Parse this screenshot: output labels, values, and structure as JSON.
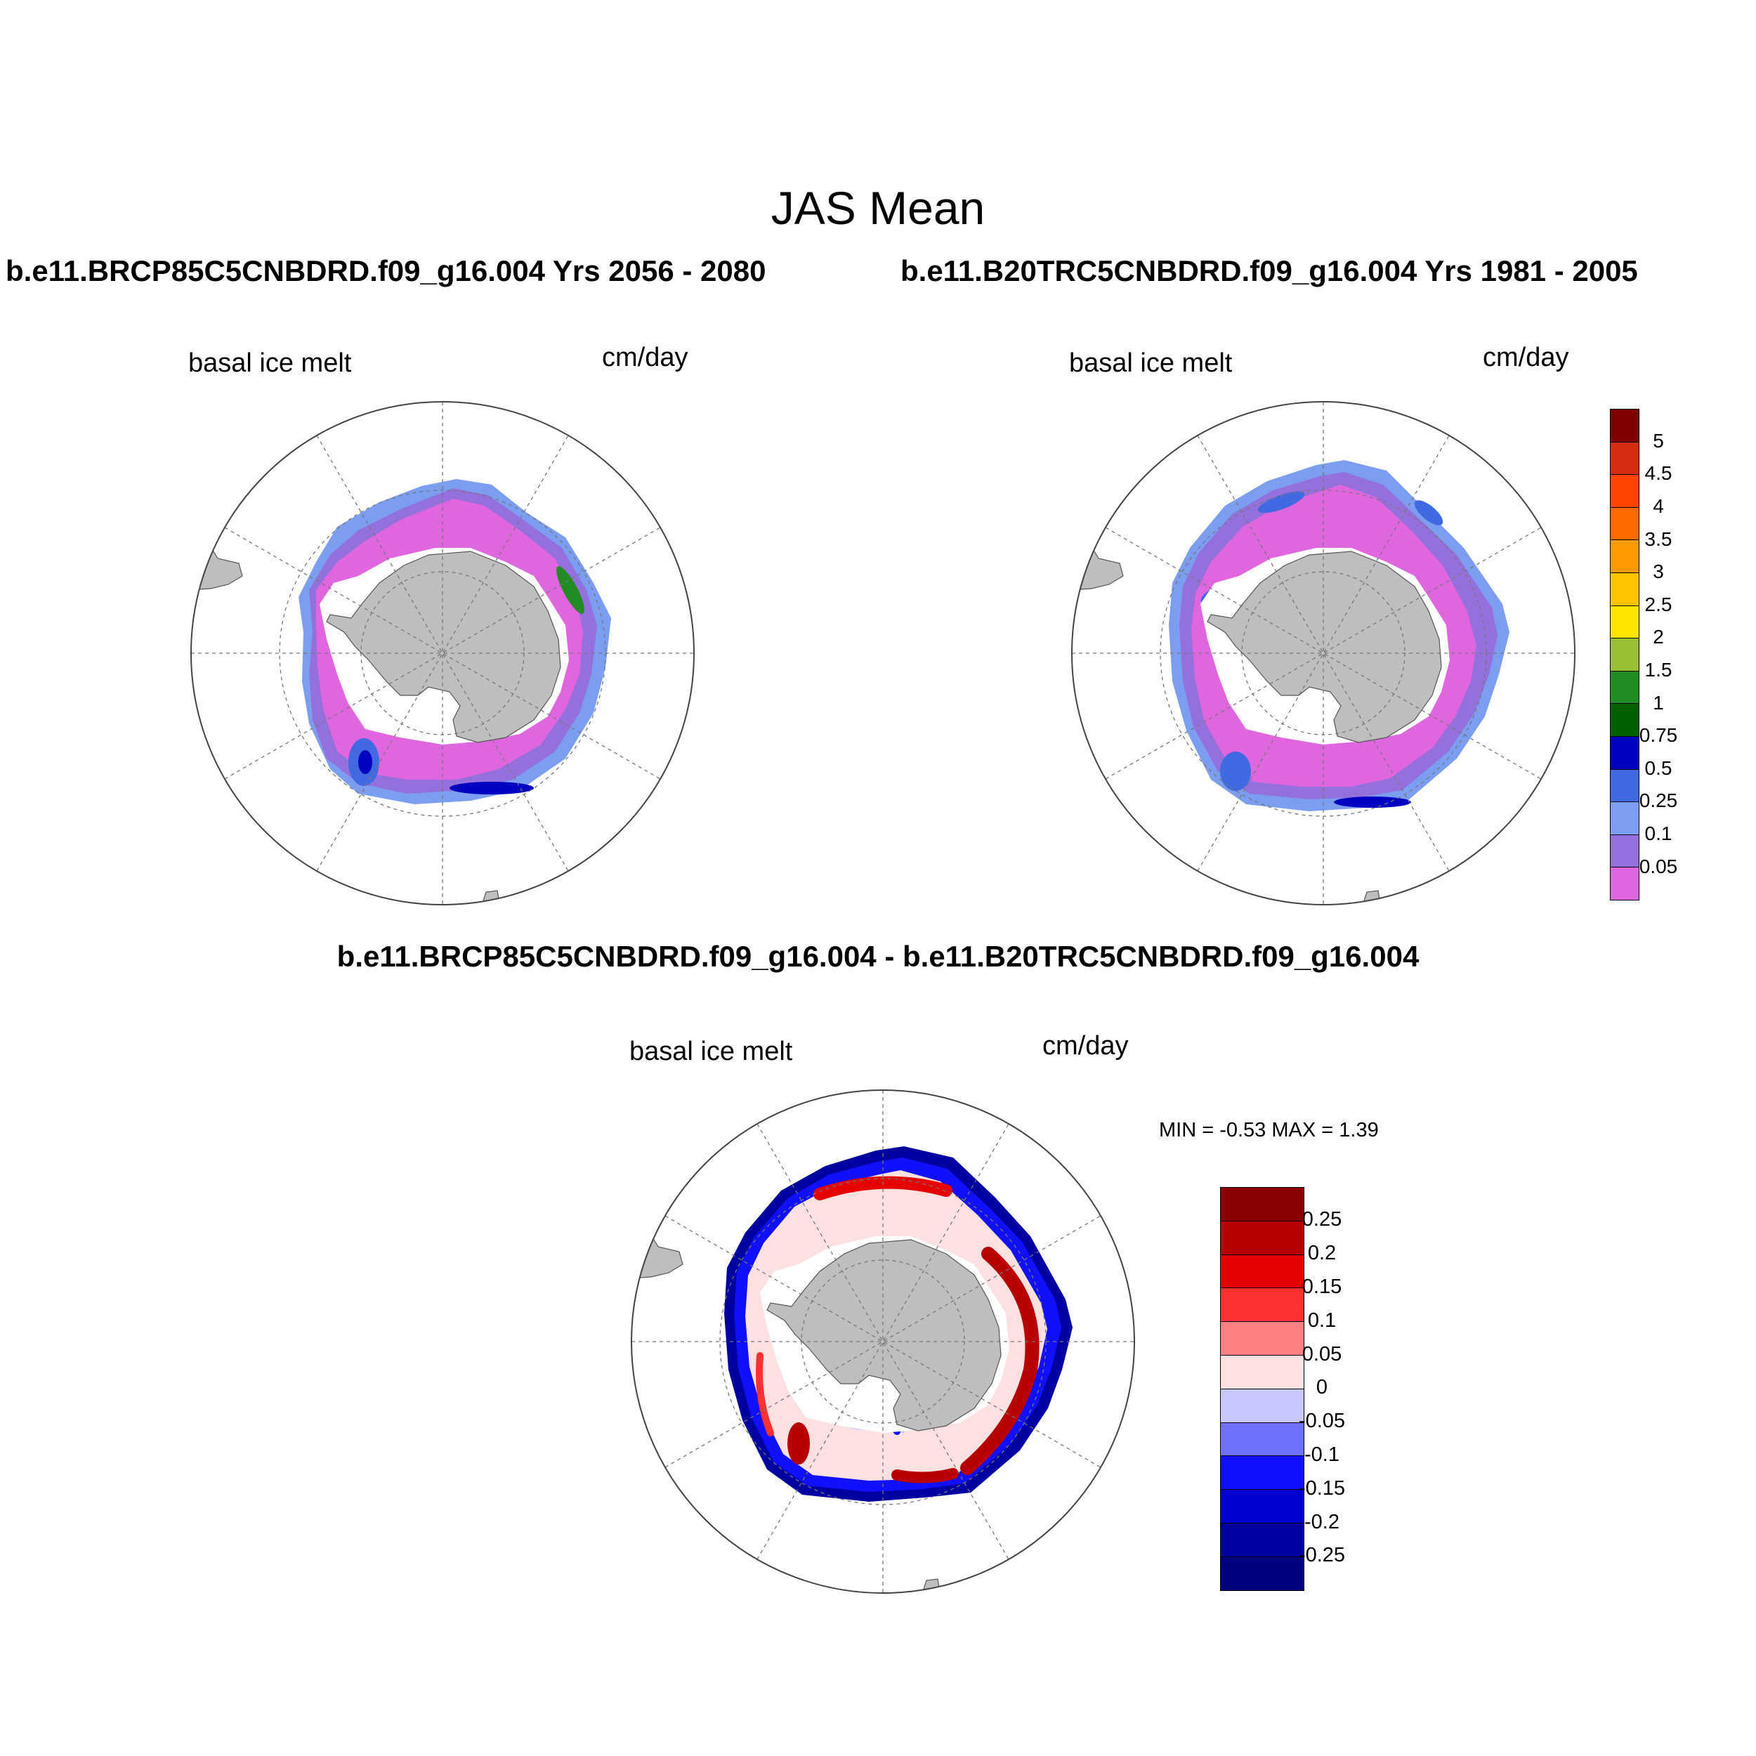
{
  "title": "JAS Mean",
  "panels": [
    {
      "run_title": "b.e11.BRCP85C5CNBDRD.f09_g16.004  Yrs 2056 - 2080",
      "variable_label": "basal ice melt",
      "units_label": "cm/day"
    },
    {
      "run_title": "b.e11.B20TRC5CNBDRD.f09_g16.004  Yrs 1981 - 2005",
      "variable_label": "basal ice melt",
      "units_label": "cm/day"
    },
    {
      "run_title": "b.e11.BRCP85C5CNBDRD.f09_g16.004 - b.e11.B20TRC5CNBDRD.f09_g16.004",
      "variable_label": "basal ice melt",
      "units_label": "cm/day",
      "min_max_label": "MIN =  -0.53 MAX =   1.39"
    }
  ],
  "colorbar_abs": {
    "labels": [
      "5",
      "4.5",
      "4",
      "3.5",
      "3",
      "2.5",
      "2",
      "1.5",
      "1",
      "0.75",
      "0.5",
      "0.25",
      "0.1",
      "0.05"
    ],
    "colors": [
      "#800000",
      "#d62c10",
      "#ff4400",
      "#ff6a00",
      "#ff9a00",
      "#ffc400",
      "#ffe600",
      "#99bf33",
      "#228b22",
      "#006000",
      "#0000c0",
      "#4169e1",
      "#7b9ef0",
      "#9370db",
      "#e066e0"
    ]
  },
  "colorbar_diff": {
    "labels": [
      "0.25",
      "0.2",
      "0.15",
      "0.1",
      "0.05",
      "0",
      "-0.05",
      "-0.1",
      "-0.15",
      "-0.2",
      "-0.25"
    ],
    "colors": [
      "#8b0000",
      "#b80000",
      "#e60000",
      "#ff3030",
      "#ff8080",
      "#fde0e0",
      "#c8c8ff",
      "#7070ff",
      "#1010ff",
      "#0000d0",
      "#0000a0",
      "#000080"
    ]
  },
  "map_colors": {
    "land": "#bebebe",
    "coast_white": "#ffffff",
    "ice_pink": "#e066e0",
    "ice_purple": "#9370db",
    "ice_lightblue": "#7b9ef0",
    "ice_blue": "#4169e1",
    "ice_darkblue": "#0000c0",
    "ice_green": "#228b22",
    "diff_lightpink": "#fde0e0",
    "diff_red": "#e60000",
    "diff_darkred": "#b80000",
    "diff_blue": "#1010ff",
    "diff_darkblue": "#0000a0",
    "diff_lightblue": "#c8c8ff"
  }
}
